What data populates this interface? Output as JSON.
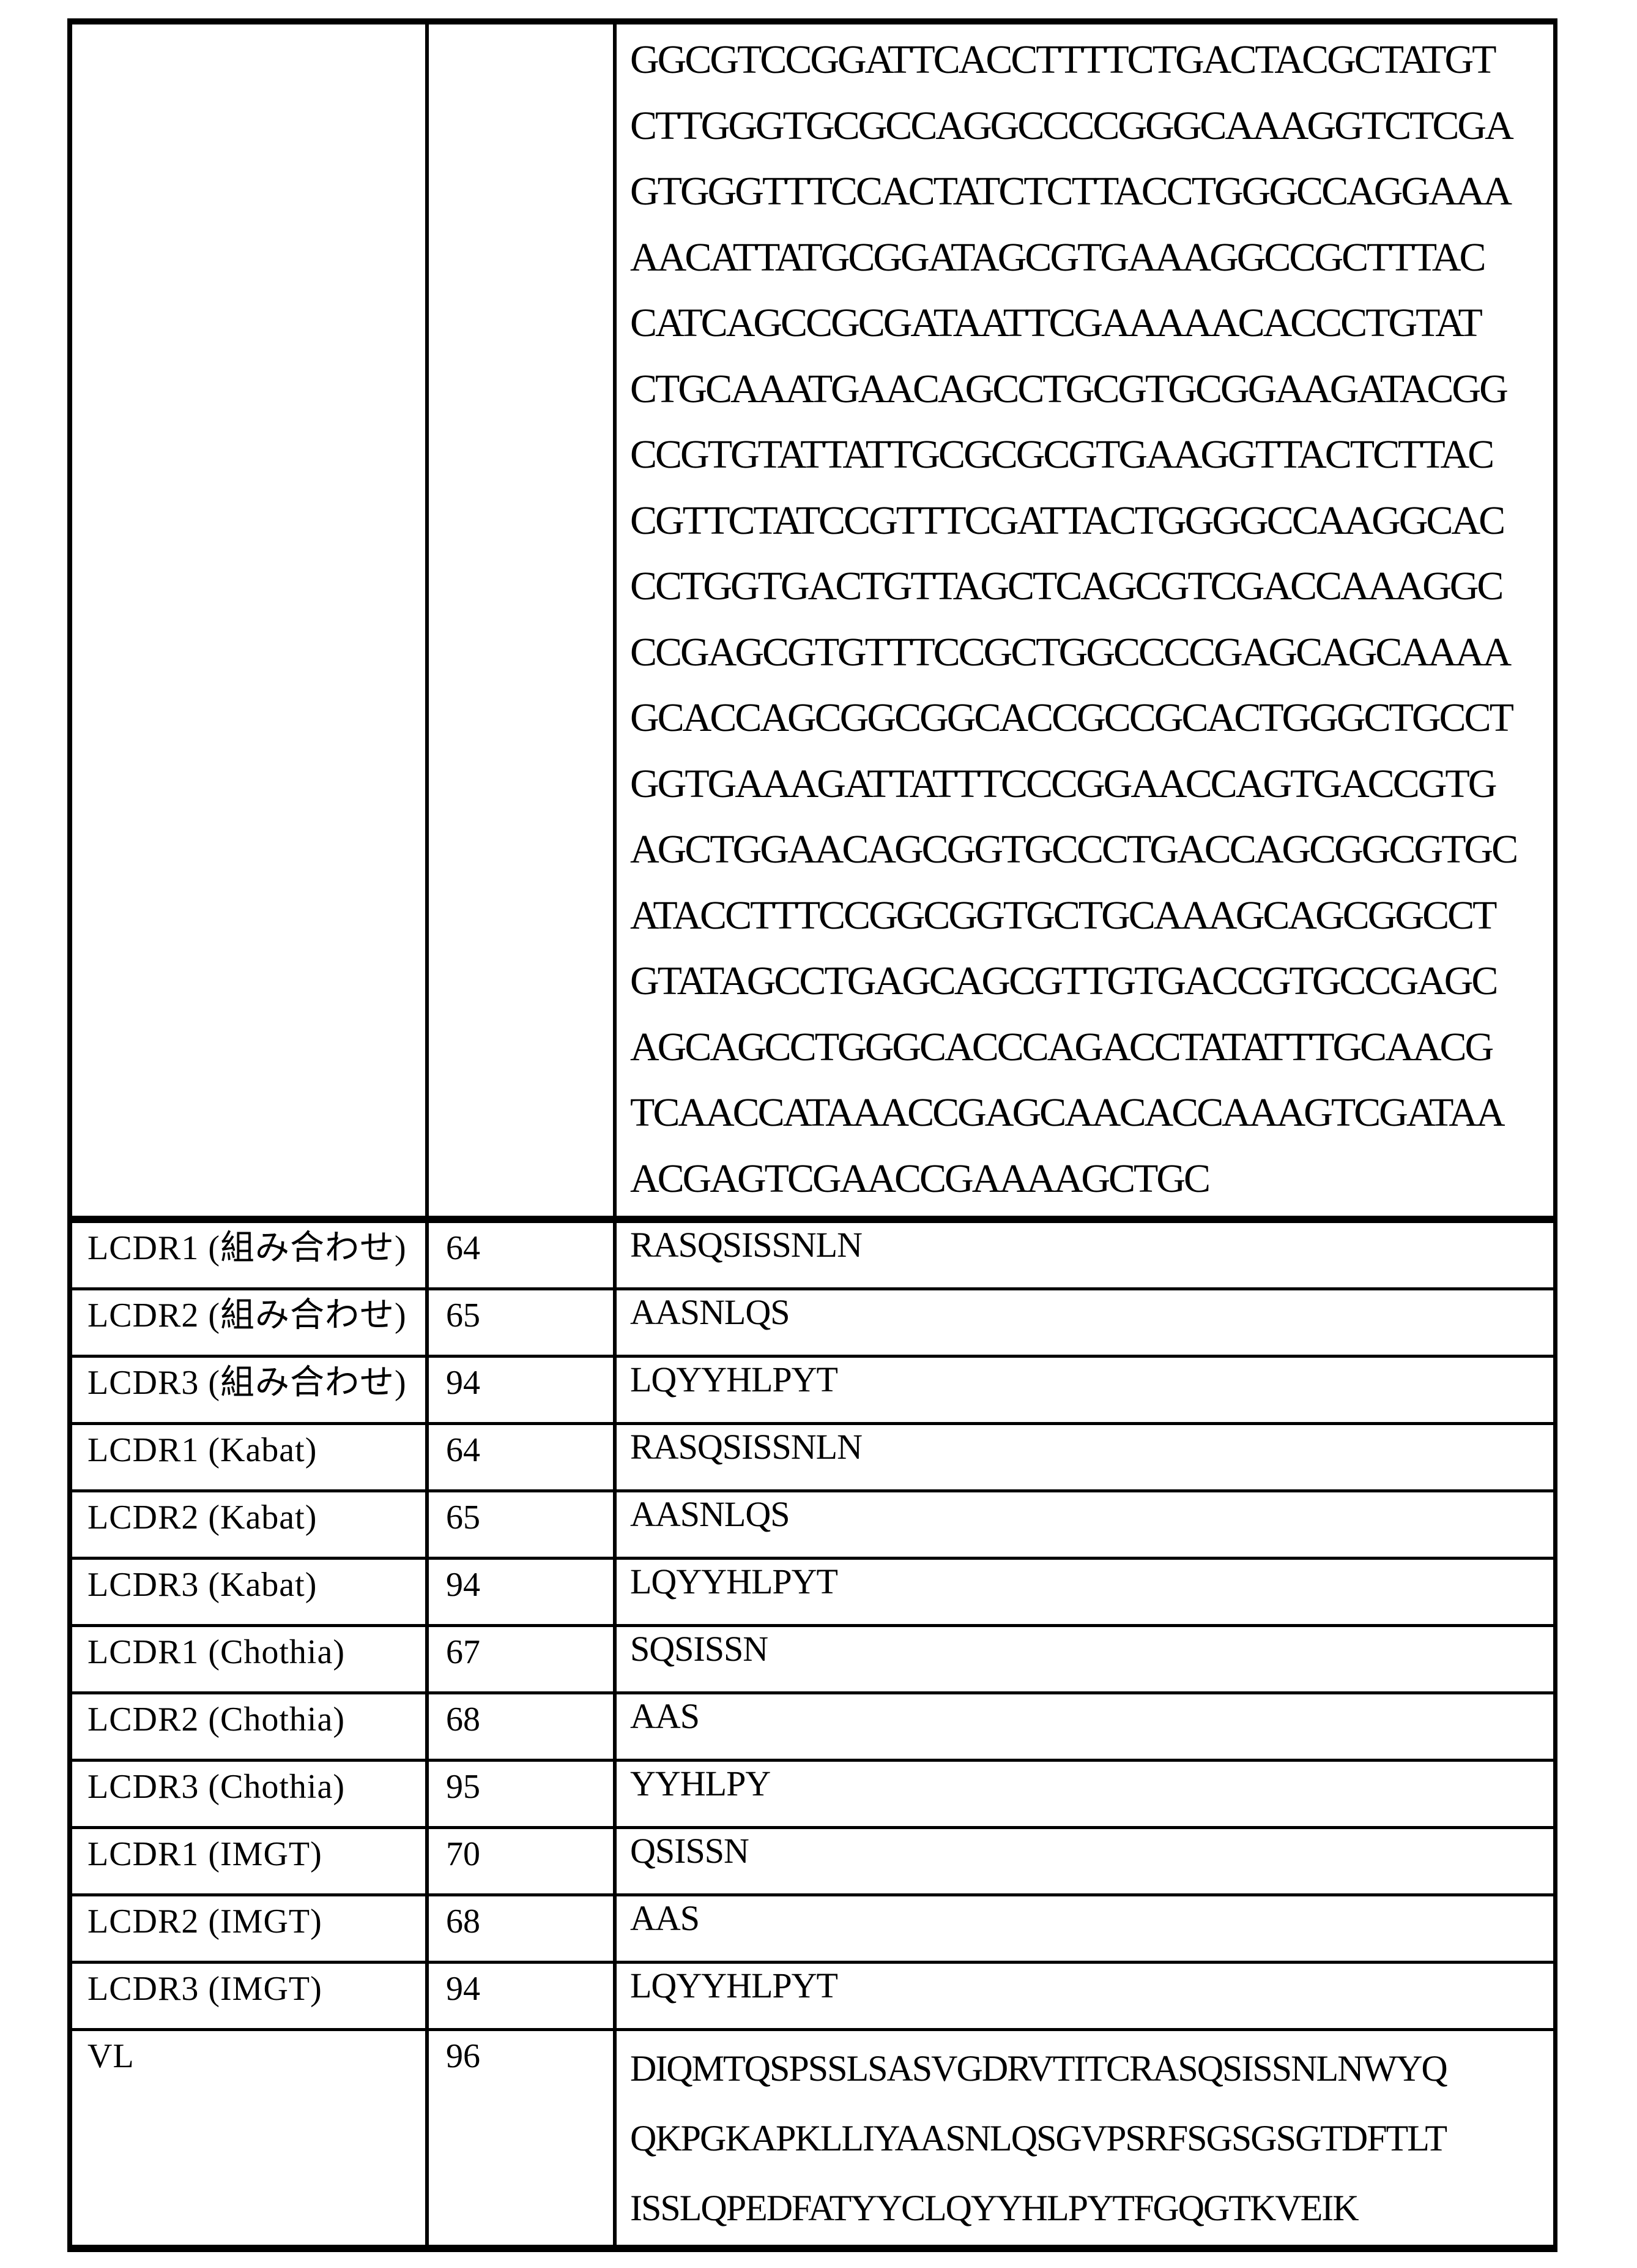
{
  "table": {
    "continuation_row": {
      "label": "",
      "seq_id": "",
      "sequence_lines": [
        "GGCGTCCGGATTCACCTTTTCTGACTACGCTATGT",
        "CTTGGGTGCGCCAGGCCCCGGGCAAAGGTCTCGA",
        "GTGGGTTTCCACTATCTCTTACCTGGGCCAGGAAA",
        "AACATTATGCGGATAGCGTGAAAGGCCGCTTTAC",
        "CATCAGCCGCGATAATTCGAAAAACACCCTGTAT",
        "CTGCAAATGAACAGCCTGCGTGCGGAAGATACGG",
        "CCGTGTATTATTGCGCGCGTGAAGGTTACTCTTAC",
        "CGTTCTATCCGTTTCGATTACTGGGGCCAAGGCAC",
        "CCTGGTGACTGTTAGCTCAGCGTCGACCAAAGGC",
        "CCGAGCGTGTTTCCGCTGGCCCCGAGCAGCAAAA",
        "GCACCAGCGGCGGCACCGCCGCACTGGGCTGCCT",
        "GGTGAAAGATTATTTCCCGGAACCAGTGACCGTG",
        "AGCTGGAACAGCGGTGCCCTGACCAGCGGCGTGC",
        "ATACCTTTCCGGCGGTGCTGCAAAGCAGCGGCCT",
        "GTATAGCCTGAGCAGCGTTGTGACCGTGCCGAGC",
        "AGCAGCCTGGGCACCCAGACCTATATTTGCAACG",
        "TCAACCATAAACCGAGCAACACCAAAGTCGATAA",
        "ACGAGTCGAACCGAAAAGCTGC"
      ]
    },
    "rows": [
      {
        "label": "LCDR1 (組み合わせ)",
        "seq_id": "64",
        "value": "RASQSISSNLN"
      },
      {
        "label": "LCDR2 (組み合わせ)",
        "seq_id": "65",
        "value": "AASNLQS"
      },
      {
        "label": "LCDR3 (組み合わせ)",
        "seq_id": "94",
        "value": "LQYYHLPYT"
      },
      {
        "label": "LCDR1 (Kabat)",
        "seq_id": "64",
        "value": "RASQSISSNLN"
      },
      {
        "label": "LCDR2 (Kabat)",
        "seq_id": "65",
        "value": "AASNLQS"
      },
      {
        "label": "LCDR3 (Kabat)",
        "seq_id": "94",
        "value": "LQYYHLPYT"
      },
      {
        "label": "LCDR1 (Chothia)",
        "seq_id": "67",
        "value": "SQSISSN"
      },
      {
        "label": "LCDR2 (Chothia)",
        "seq_id": "68",
        "value": "AAS"
      },
      {
        "label": "LCDR3 (Chothia)",
        "seq_id": "95",
        "value": "YYHLPY"
      },
      {
        "label": "LCDR1 (IMGT)",
        "seq_id": "70",
        "value": "QSISSN"
      },
      {
        "label": "LCDR2 (IMGT)",
        "seq_id": "68",
        "value": "AAS"
      },
      {
        "label": "LCDR3 (IMGT)",
        "seq_id": "94",
        "value": "LQYYHLPYT"
      }
    ],
    "vl_row": {
      "label": "VL",
      "seq_id": "96",
      "value_lines": [
        "DIQMTQSPSSLSASVGDRVTITCRASQSISSNLNWYQ",
        "QKPGKAPKLLIYAASNLQSGVPSRFSGSGSGTDFTLT",
        "ISSLQPEDFATYYCLQYYHLPYTFGQGTKVEIK"
      ]
    }
  }
}
